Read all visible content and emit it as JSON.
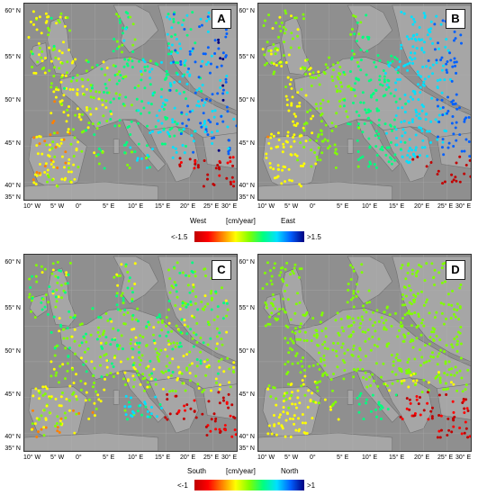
{
  "panels": [
    {
      "label": "A",
      "component": "east"
    },
    {
      "label": "B",
      "component": "east_model"
    },
    {
      "label": "C",
      "component": "north"
    },
    {
      "label": "D",
      "component": "north_model"
    }
  ],
  "lat_labels": [
    "60° N",
    "55° N",
    "50° N",
    "45° N",
    "40° N",
    "35° N"
  ],
  "lon_labels": [
    "10° W",
    "5° W",
    "0°",
    "5° E",
    "10° E",
    "15° E",
    "20° E",
    "25° E",
    "30° E"
  ],
  "colorbar_east": {
    "left_label": "West",
    "unit": "[cm/year]",
    "right_label": "East",
    "min": "<-1.5",
    "max": ">1.5"
  },
  "colorbar_north": {
    "left_label": "South",
    "unit": "[cm/year]",
    "right_label": "North",
    "min": "<-1",
    "max": ">1"
  },
  "colors": {
    "sea": "#8f8f8f",
    "land": "#a6a6a6",
    "scale": [
      "#c00000",
      "#ff0000",
      "#ff8000",
      "#ffff00",
      "#80ff00",
      "#00ff80",
      "#00e0ff",
      "#0060ff",
      "#000080"
    ]
  }
}
